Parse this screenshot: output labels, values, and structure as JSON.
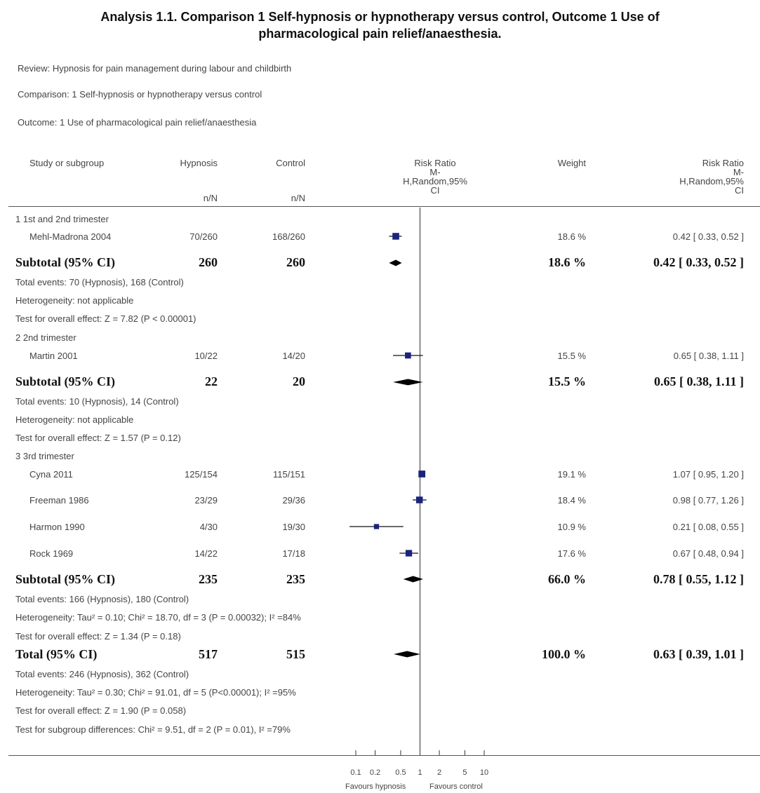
{
  "header": {
    "title_line1": "Analysis 1.1.   Comparison 1 Self-hypnosis or hypnotherapy versus control, Outcome 1 Use of",
    "title_line2": "pharmacological pain relief/anaesthesia.",
    "review_label": "Review:",
    "review": "Hypnosis for pain management during labour and childbirth",
    "comparison_label": "Comparison:",
    "comparison": "1 Self-hypnosis or hypnotherapy versus control",
    "outcome_label": "Outcome:",
    "outcome": "1 Use of pharmacological pain relief/anaesthesia"
  },
  "columns": {
    "study": "Study or subgroup",
    "hypnosis": "Hypnosis",
    "hypnosis_unit": "n/N",
    "control": "Control",
    "control_unit": "n/N",
    "rr_plot_1": "Risk Ratio",
    "rr_plot_2": "M-",
    "rr_plot_3": "H,Random,95%",
    "rr_plot_4": "CI",
    "weight": "Weight",
    "rr_1": "Risk Ratio",
    "rr_2": "M-",
    "rr_3": "H,Random,95%",
    "rr_4": "CI"
  },
  "groups": [
    {
      "label": "1 1st and 2nd trimester",
      "studies": [
        {
          "name": "Mehl-Madrona 2004",
          "hypnosis": "70/260",
          "control": "168/260",
          "weight": "18.6 %",
          "rr_text": "0.42 [ 0.33, 0.52 ]"
        }
      ],
      "subtotal": {
        "label": "Subtotal (95% CI)",
        "hypnosis": "260",
        "control": "260",
        "weight": "18.6 %",
        "rr_text": "0.42 [ 0.33, 0.52 ]"
      },
      "notes": [
        "Total events: 70 (Hypnosis), 168 (Control)",
        "Heterogeneity: not applicable",
        "Test for overall effect: Z = 7.82 (P < 0.00001)"
      ]
    },
    {
      "label": "2 2nd trimester",
      "studies": [
        {
          "name": "Martin 2001",
          "hypnosis": "10/22",
          "control": "14/20",
          "weight": "15.5 %",
          "rr_text": "0.65 [ 0.38, 1.11 ]"
        }
      ],
      "subtotal": {
        "label": "Subtotal (95% CI)",
        "hypnosis": "22",
        "control": "20",
        "weight": "15.5 %",
        "rr_text": "0.65 [ 0.38, 1.11 ]"
      },
      "notes": [
        "Total events: 10 (Hypnosis), 14 (Control)",
        "Heterogeneity: not applicable",
        "Test for overall effect: Z = 1.57 (P = 0.12)"
      ]
    },
    {
      "label": "3 3rd trimester",
      "studies": [
        {
          "name": "Cyna 2011",
          "hypnosis": "125/154",
          "control": "115/151",
          "weight": "19.1 %",
          "rr_text": "1.07 [ 0.95, 1.20 ]"
        },
        {
          "name": "Freeman 1986",
          "hypnosis": "23/29",
          "control": "29/36",
          "weight": "18.4 %",
          "rr_text": "0.98 [ 0.77, 1.26 ]"
        },
        {
          "name": "Harmon 1990",
          "hypnosis": "4/30",
          "control": "19/30",
          "weight": "10.9 %",
          "rr_text": "0.21 [ 0.08, 0.55 ]"
        },
        {
          "name": "Rock 1969",
          "hypnosis": "14/22",
          "control": "17/18",
          "weight": "17.6 %",
          "rr_text": "0.67 [ 0.48, 0.94 ]"
        }
      ],
      "subtotal": {
        "label": "Subtotal (95% CI)",
        "hypnosis": "235",
        "control": "235",
        "weight": "66.0 %",
        "rr_text": "0.78 [ 0.55, 1.12 ]"
      },
      "notes": [
        "Total events: 166 (Hypnosis), 180 (Control)",
        "Heterogeneity: Tau² = 0.10; Chi² = 18.70, df = 3 (P = 0.00032); I² =84%",
        "Test for overall effect: Z = 1.34 (P = 0.18)"
      ]
    }
  ],
  "total": {
    "label": "Total (95% CI)",
    "hypnosis": "517",
    "control": "515",
    "weight": "100.0 %",
    "rr_text": "0.63 [ 0.39, 1.01 ]",
    "notes": [
      "Total events: 246 (Hypnosis), 362 (Control)",
      "Heterogeneity: Tau² = 0.30; Chi² = 91.01, df = 5 (P<0.00001); I² =95%",
      "Test for overall effect: Z = 1.90 (P = 0.058)",
      "Test for subgroup differences: Chi² = 9.51, df = 2 (P = 0.01), I² =79%"
    ]
  },
  "axis": {
    "ticks": [
      "0.1",
      "0.2",
      "0.5",
      "1",
      "2",
      "5",
      "10"
    ],
    "favours_left": "Favours hypnosis",
    "favours_right": "Favours control"
  },
  "chart_data": {
    "type": "scatter",
    "x_scale": "log",
    "xlim": [
      0.1,
      10
    ],
    "tick_values": [
      0.1,
      0.2,
      0.5,
      1,
      2,
      5,
      10
    ],
    "reference_line": 1,
    "studies": [
      {
        "name": "Mehl-Madrona 2004",
        "rr": 0.42,
        "lo": 0.33,
        "hi": 0.52,
        "weight": 18.6
      },
      {
        "name": "Martin 2001",
        "rr": 0.65,
        "lo": 0.38,
        "hi": 1.11,
        "weight": 15.5
      },
      {
        "name": "Cyna 2011",
        "rr": 1.07,
        "lo": 0.95,
        "hi": 1.2,
        "weight": 19.1
      },
      {
        "name": "Freeman 1986",
        "rr": 0.98,
        "lo": 0.77,
        "hi": 1.26,
        "weight": 18.4
      },
      {
        "name": "Harmon 1990",
        "rr": 0.21,
        "lo": 0.08,
        "hi": 0.55,
        "weight": 10.9
      },
      {
        "name": "Rock 1969",
        "rr": 0.67,
        "lo": 0.48,
        "hi": 0.94,
        "weight": 17.6
      }
    ],
    "pooled": [
      {
        "name": "Subtotal 1st and 2nd trimester",
        "rr": 0.42,
        "lo": 0.33,
        "hi": 0.52
      },
      {
        "name": "Subtotal 2nd trimester",
        "rr": 0.65,
        "lo": 0.38,
        "hi": 1.11
      },
      {
        "name": "Subtotal 3rd trimester",
        "rr": 0.78,
        "lo": 0.55,
        "hi": 1.12
      },
      {
        "name": "Total",
        "rr": 0.63,
        "lo": 0.39,
        "hi": 1.01
      }
    ]
  }
}
